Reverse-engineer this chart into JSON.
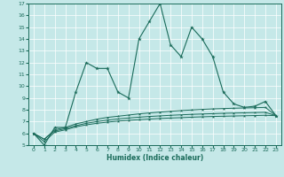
{
  "xlabel": "Humidex (Indice chaleur)",
  "bg_color": "#c5e8e8",
  "line_color": "#1a6b5a",
  "x": [
    0,
    1,
    2,
    3,
    4,
    5,
    6,
    7,
    8,
    9,
    10,
    11,
    12,
    13,
    14,
    15,
    16,
    17,
    18,
    19,
    20,
    21,
    22,
    23
  ],
  "y_main": [
    6,
    5,
    6.5,
    6.5,
    9.5,
    12,
    11.5,
    11.5,
    9.5,
    9,
    14,
    15.5,
    17,
    13.5,
    12.5,
    15,
    14,
    12.5,
    9.5,
    8.5,
    8.2,
    8.3,
    8.7,
    7.5
  ],
  "y_line2": [
    6,
    5.5,
    6.3,
    6.5,
    6.8,
    7.0,
    7.2,
    7.35,
    7.45,
    7.55,
    7.65,
    7.73,
    7.8,
    7.87,
    7.93,
    7.98,
    8.03,
    8.07,
    8.1,
    8.13,
    8.15,
    8.17,
    8.2,
    7.5
  ],
  "y_line3": [
    6,
    5.5,
    6.2,
    6.4,
    6.65,
    6.85,
    7.0,
    7.12,
    7.22,
    7.3,
    7.37,
    7.43,
    7.48,
    7.53,
    7.57,
    7.61,
    7.64,
    7.67,
    7.7,
    7.72,
    7.74,
    7.76,
    7.78,
    7.5
  ],
  "y_line4": [
    6,
    5.3,
    6.1,
    6.3,
    6.55,
    6.72,
    6.85,
    6.95,
    7.04,
    7.1,
    7.16,
    7.21,
    7.26,
    7.3,
    7.33,
    7.37,
    7.4,
    7.43,
    7.45,
    7.47,
    7.49,
    7.51,
    7.53,
    7.5
  ],
  "ylim": [
    5,
    17
  ],
  "xlim": [
    -0.5,
    23.5
  ],
  "yticks": [
    5,
    6,
    7,
    8,
    9,
    10,
    11,
    12,
    13,
    14,
    15,
    16,
    17
  ],
  "xticks": [
    0,
    1,
    2,
    3,
    4,
    5,
    6,
    7,
    8,
    9,
    10,
    11,
    12,
    13,
    14,
    15,
    16,
    17,
    18,
    19,
    20,
    21,
    22,
    23
  ]
}
